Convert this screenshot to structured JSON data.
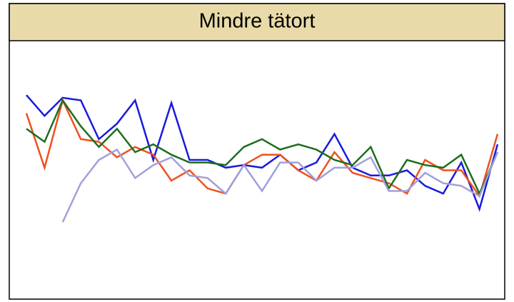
{
  "chart_data": {
    "type": "line",
    "title": "Mindre tätort",
    "categories": [
      null,
      null,
      null,
      null,
      null,
      null,
      null,
      null,
      null,
      null,
      null,
      null,
      null,
      null,
      null,
      null,
      null,
      null,
      null,
      null,
      null,
      null,
      null,
      null,
      null,
      null,
      null
    ],
    "ylim": [
      0,
      100
    ],
    "series": [
      {
        "color": "#1a1adc",
        "values": [
          79,
          71,
          78,
          77,
          62,
          68,
          77,
          54,
          76,
          54,
          54,
          51,
          52,
          51,
          56,
          50,
          53,
          64,
          51,
          48,
          48,
          50,
          44,
          41,
          53,
          35,
          60
        ]
      },
      {
        "color": "#f0501e",
        "values": [
          72,
          51,
          77,
          62,
          61,
          55,
          59,
          56,
          46,
          50,
          43,
          41,
          52,
          56,
          56,
          50,
          46,
          57,
          49,
          47,
          45,
          41,
          54,
          50,
          50,
          40,
          64
        ]
      },
      {
        "color": "#1e6e1e",
        "values": [
          66,
          61,
          77,
          67,
          59,
          66,
          57,
          60,
          56,
          53,
          53,
          52,
          59,
          62,
          58,
          60,
          58,
          54,
          52,
          59,
          43,
          54,
          52,
          51,
          56,
          41,
          57
        ]
      },
      {
        "color": "#a0a0dc",
        "values": [
          null,
          null,
          30,
          45,
          54,
          58,
          47,
          52,
          55,
          48,
          47,
          41,
          52,
          42,
          53,
          53,
          46,
          51,
          51,
          55,
          42,
          42,
          49,
          45,
          44,
          40,
          57
        ]
      }
    ]
  }
}
